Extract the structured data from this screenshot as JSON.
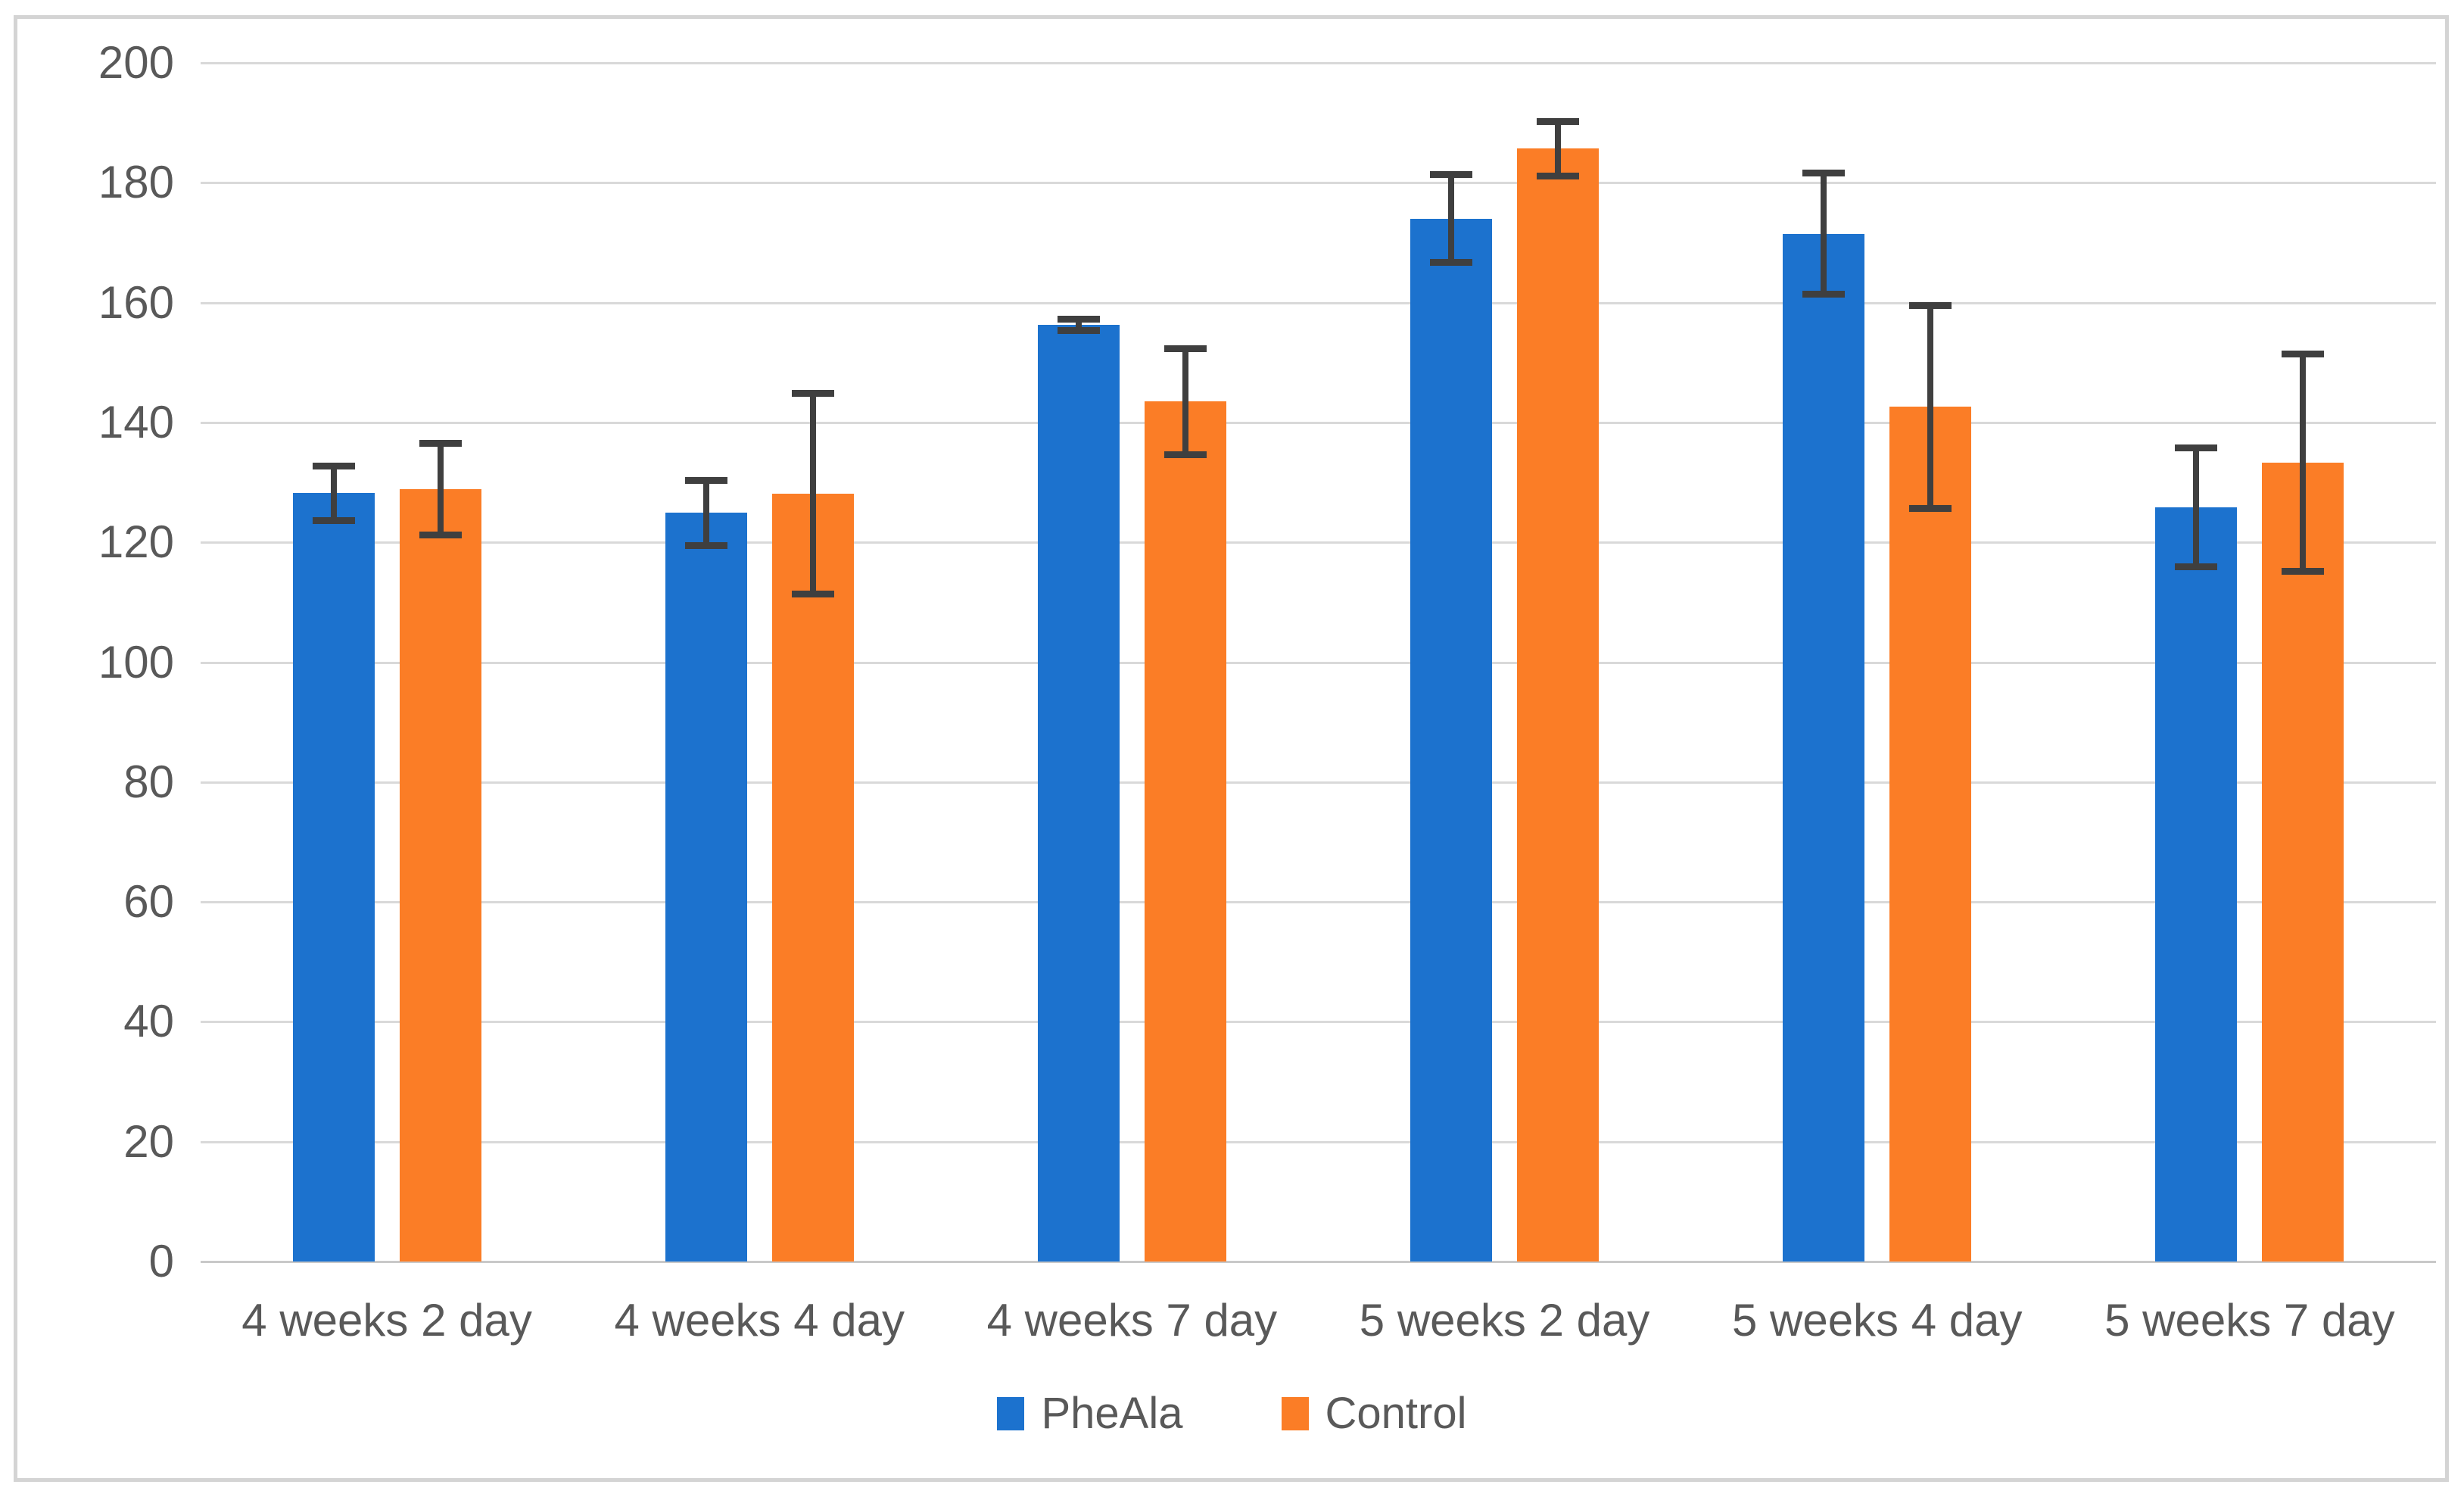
{
  "chart_data": {
    "type": "bar",
    "title": "",
    "xlabel": "",
    "ylabel": "",
    "categories": [
      "4 weeks 2 day",
      "4 weeks 4 day",
      "4 weeks 7 day",
      "5 weeks 2 day",
      "5 weeks 4 day",
      "5 weeks 7 day"
    ],
    "series": [
      {
        "name": "PheAla",
        "color": "#1c72ce",
        "values": [
          128.2,
          124.9,
          156.3,
          174.0,
          171.5,
          125.8
        ],
        "errors": [
          4.6,
          5.5,
          1.0,
          7.4,
          10.2,
          10.0
        ]
      },
      {
        "name": "Control",
        "color": "#fb7d26",
        "values": [
          128.9,
          128.1,
          143.5,
          185.7,
          142.6,
          133.3
        ],
        "errors": [
          7.7,
          16.8,
          8.9,
          4.6,
          17.0,
          18.2
        ]
      }
    ],
    "ylim": [
      0,
      200
    ],
    "yticks": [
      0,
      20,
      40,
      60,
      80,
      100,
      120,
      140,
      160,
      180,
      200
    ],
    "grid": true,
    "error_bars": true,
    "legend_position": "bottom"
  },
  "style": {
    "gridline_color": "#d9d9d9",
    "baseline_color": "#c9c9c9",
    "tick_label_color": "#595959",
    "error_bar_color": "#3f3f3f",
    "frame_border_color": "#d4d4d4",
    "background_color": "#ffffff"
  }
}
